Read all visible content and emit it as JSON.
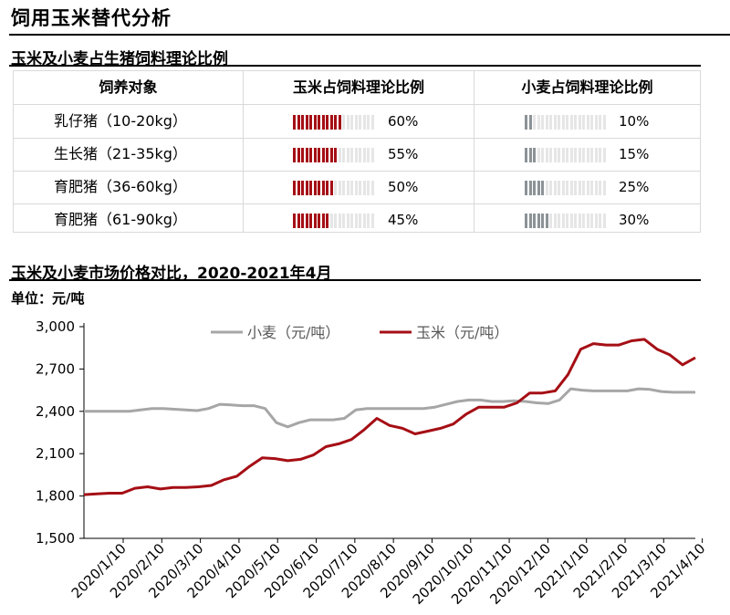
{
  "page": {
    "title": "饲用玉米替代分析",
    "table_title": "玉米及小麦占生猪饲料理论比例",
    "chart_title": "玉米及小麦市场价格对比，2020-2021年4月",
    "unit": "单位：元/吨"
  },
  "table": {
    "headers": [
      "饲养对象",
      "玉米占饲料理论比例",
      "小麦占饲料理论比例"
    ],
    "rows": [
      {
        "target": "乳仔猪（10-20kg）",
        "corn_pct": "60%",
        "corn": 60,
        "wheat_pct": "10%",
        "wheat": 10
      },
      {
        "target": "生长猪（21-35kg）",
        "corn_pct": "55%",
        "corn": 55,
        "wheat_pct": "15%",
        "wheat": 15
      },
      {
        "target": "育肥猪（36-60kg）",
        "corn_pct": "50%",
        "corn": 50,
        "wheat_pct": "25%",
        "wheat": 25
      },
      {
        "target": "育肥猪（61-90kg）",
        "corn_pct": "45%",
        "corn": 45,
        "wheat_pct": "30%",
        "wheat": 30
      }
    ],
    "colors": {
      "corn": "#a50f15",
      "wheat": "#8c9397",
      "empty": "#e6e6e6"
    }
  },
  "chart_data": {
    "type": "line",
    "title": "玉米及小麦市场价格对比，2020-2021年4月",
    "ylabel": "单位：元/吨",
    "ylim": [
      1500,
      3000
    ],
    "yticks": [
      "1,500",
      "1,800",
      "2,100",
      "2,400",
      "2,700",
      "3,000"
    ],
    "ytick_values": [
      1500,
      1800,
      2100,
      2400,
      2700,
      3000
    ],
    "xtick_labels": [
      "2020/1/10",
      "2020/2/10",
      "2020/3/10",
      "2020/4/10",
      "2020/5/10",
      "2020/6/10",
      "2020/7/10",
      "2020/8/10",
      "2020/9/10",
      "2020/10/10",
      "2020/11/10",
      "2020/12/10",
      "2021/1/10",
      "2021/2/10",
      "2021/3/10",
      "2021/4/10"
    ],
    "grid": false,
    "legend_position": "top",
    "series": [
      {
        "name": "小麦（元/吨）",
        "color": "#a6a6a6",
        "values": [
          2400,
          2400,
          2400,
          2400,
          2400,
          2410,
          2420,
          2420,
          2415,
          2410,
          2405,
          2420,
          2450,
          2445,
          2440,
          2440,
          2420,
          2320,
          2290,
          2320,
          2340,
          2340,
          2340,
          2350,
          2410,
          2420,
          2420,
          2420,
          2420,
          2420,
          2420,
          2430,
          2450,
          2470,
          2480,
          2480,
          2470,
          2470,
          2475,
          2470,
          2460,
          2455,
          2480,
          2560,
          2550,
          2545,
          2545,
          2545,
          2545,
          2560,
          2555,
          2540,
          2535,
          2535,
          2535
        ]
      },
      {
        "name": "玉米（元/吨）",
        "color": "#a50f15",
        "values": [
          1810,
          1815,
          1820,
          1820,
          1855,
          1865,
          1850,
          1860,
          1860,
          1865,
          1875,
          1915,
          1940,
          2010,
          2070,
          2065,
          2050,
          2060,
          2090,
          2150,
          2170,
          2200,
          2270,
          2350,
          2300,
          2280,
          2240,
          2260,
          2280,
          2310,
          2380,
          2430,
          2430,
          2430,
          2460,
          2530,
          2530,
          2545,
          2660,
          2840,
          2880,
          2870,
          2870,
          2900,
          2910,
          2840,
          2800,
          2730,
          2780
        ]
      }
    ]
  }
}
